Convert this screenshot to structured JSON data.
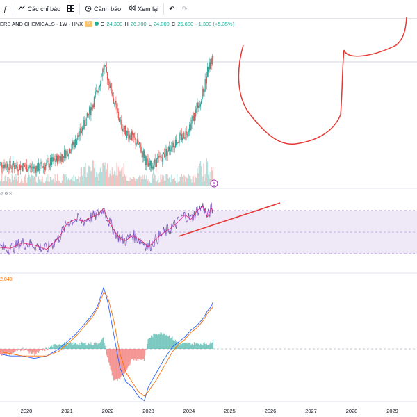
{
  "toolbar": {
    "indicators_label": "Các chỉ báo",
    "alerts_label": "Cảnh báo",
    "replay_label": "Xem lại",
    "left_icon": "function-icon",
    "layout_icon": "grid-icon",
    "alert_icon": "alarm-clock-icon",
    "replay_icon": "rewind-icon",
    "undo_icon": "undo-icon",
    "redo_icon": "redo-icon"
  },
  "legend": {
    "symbol": "ERS AND CHEMICALS · 1W · HNX",
    "badge": "D",
    "open_key": "O",
    "open": "24.300",
    "high_key": "H",
    "high": "26.700",
    "low_key": "L",
    "low": "24.000",
    "close_key": "C",
    "close": "25.600",
    "change": "+1.300 (+5,35%)"
  },
  "rsi_pane": {
    "icons": [
      "eye-icon",
      "settings-icon",
      "close-icon"
    ]
  },
  "macd_pane": {
    "value": "2.040"
  },
  "x_axis": {
    "ticks": [
      "2020",
      "2021",
      "2022",
      "2023",
      "2024",
      "2025",
      "2026",
      "2027",
      "2028",
      "2029"
    ]
  },
  "colors": {
    "up": "#26a69a",
    "down": "#ef5350",
    "rsi_line": "#7e57c2",
    "rsi_ma": "#e91e63",
    "rsi_band": "#ede7f6",
    "macd": "#2962ff",
    "signal": "#ff6d00",
    "drawing": "#e53935"
  },
  "chart_data": {
    "type": "line",
    "title": "ERS AND CHEMICALS · 1W · HNX",
    "x_ticks": [
      "2020",
      "2021",
      "2022",
      "2023",
      "2024",
      "2025",
      "2026",
      "2027",
      "2028",
      "2029"
    ],
    "price": {
      "x_years": [
        2019.3,
        2019.6,
        2019.9,
        2020.2,
        2020.5,
        2020.8,
        2021.0,
        2021.2,
        2021.4,
        2021.6,
        2021.75,
        2021.9,
        2022.0,
        2022.15,
        2022.3,
        2022.45,
        2022.6,
        2022.75,
        2022.9,
        2023.0,
        2023.2,
        2023.4,
        2023.6,
        2023.75,
        2023.9,
        2024.05,
        2024.2,
        2024.35,
        2024.45,
        2024.55,
        2024.6
      ],
      "close": [
        9.0,
        8.7,
        8.6,
        8.3,
        8.8,
        9.8,
        10.8,
        12.2,
        14.5,
        17.5,
        20.0,
        23.5,
        22.0,
        18.5,
        15.2,
        13.6,
        13.0,
        11.8,
        10.2,
        8.4,
        9.3,
        10.4,
        12.0,
        12.6,
        13.5,
        15.0,
        17.4,
        19.6,
        22.8,
        24.3,
        25.6
      ]
    },
    "rsi": {
      "series": [
        {
          "name": "RSI",
          "values": [
            36,
            35,
            40,
            38,
            34,
            45,
            58,
            62,
            60,
            64,
            66,
            72,
            62,
            52,
            44,
            42,
            47,
            44,
            40,
            36,
            44,
            50,
            55,
            60,
            66,
            62,
            70,
            74,
            64,
            72,
            68
          ]
        }
      ],
      "bands": [
        30,
        70
      ]
    },
    "macd": {
      "series": [
        {
          "name": "MACD",
          "values": [
            -0.2,
            -0.3,
            -0.3,
            -0.4,
            -0.3,
            0.0,
            0.3,
            0.6,
            1.0,
            1.4,
            1.8,
            2.6,
            2.0,
            0.6,
            -0.8,
            -1.4,
            -1.6,
            -2.0,
            -2.2,
            -1.6,
            -1.0,
            -0.4,
            0.1,
            0.3,
            0.5,
            0.8,
            1.0,
            1.3,
            1.6,
            1.8,
            2.04
          ]
        },
        {
          "name": "Signal",
          "values": [
            -0.1,
            -0.2,
            -0.3,
            -0.3,
            -0.3,
            -0.1,
            0.2,
            0.5,
            0.9,
            1.3,
            1.7,
            2.4,
            2.2,
            1.2,
            -0.2,
            -1.0,
            -1.4,
            -1.8,
            -2.0,
            -1.8,
            -1.3,
            -0.7,
            -0.1,
            0.2,
            0.4,
            0.7,
            0.9,
            1.2,
            1.5,
            1.7,
            1.8
          ]
        }
      ]
    }
  }
}
